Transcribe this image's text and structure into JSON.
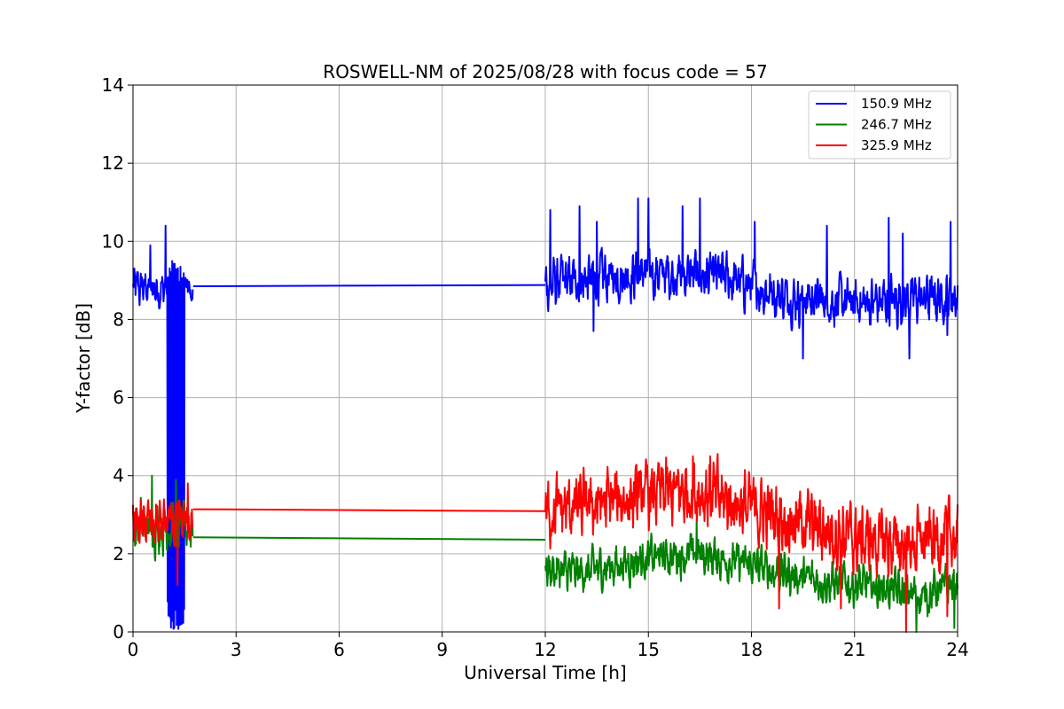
{
  "chart_data": {
    "type": "line",
    "title": "ROSWELL-NM of 2025/08/28 with focus code = 57",
    "xlabel": "Universal Time [h]",
    "ylabel": "Y-factor [dB]",
    "xlim": [
      0,
      24
    ],
    "ylim": [
      0,
      14
    ],
    "xticks": [
      0,
      3,
      6,
      9,
      12,
      15,
      18,
      21,
      24
    ],
    "yticks": [
      0,
      2,
      4,
      6,
      8,
      10,
      12,
      14
    ],
    "grid": true,
    "legend_position": "top-right",
    "series": [
      {
        "name": "150.9 MHz",
        "color": "#0000ff",
        "segments": [
          {
            "x_start": 0.0,
            "x_end": 1.75,
            "baseline": 8.8,
            "amplitude": 0.45,
            "spikes": [
              [
                0.5,
                9.9
              ],
              [
                0.95,
                10.4
              ],
              [
                1.3,
                10.3
              ],
              [
                1.45,
                10.7
              ]
            ],
            "dropouts": [
              [
                1.0,
                1.5,
                0.0,
                9.5
              ]
            ]
          },
          {
            "x_start": 1.75,
            "x_end": 12.0,
            "points": [
              [
                1.75,
                8.85
              ],
              [
                12.0,
                8.88
              ]
            ]
          },
          {
            "x_start": 12.0,
            "x_end": 24.0,
            "baseline_points": [
              [
                12.0,
                8.9
              ],
              [
                15.0,
                9.2
              ],
              [
                17.0,
                9.1
              ],
              [
                19.0,
                8.6
              ],
              [
                21.0,
                8.4
              ],
              [
                24.0,
                8.6
              ]
            ],
            "amplitude": 0.55,
            "spikes": [
              [
                12.15,
                10.8
              ],
              [
                13.0,
                10.9
              ],
              [
                13.5,
                10.5
              ],
              [
                14.7,
                11.1
              ],
              [
                15.0,
                11.1
              ],
              [
                16.0,
                10.9
              ],
              [
                16.5,
                11.1
              ],
              [
                18.1,
                10.5
              ],
              [
                20.2,
                10.4
              ],
              [
                22.0,
                10.6
              ],
              [
                22.4,
                10.2
              ],
              [
                23.8,
                10.5
              ]
            ],
            "dips": [
              [
                13.4,
                7.7
              ],
              [
                19.5,
                7.0
              ],
              [
                22.6,
                7.0
              ],
              [
                23.7,
                7.6
              ]
            ]
          }
        ]
      },
      {
        "name": "246.7 MHz",
        "color": "#008000",
        "segments": [
          {
            "x_start": 0.0,
            "x_end": 1.75,
            "baseline": 2.7,
            "amplitude": 0.55,
            "spikes": [
              [
                0.55,
                4.0
              ],
              [
                1.25,
                3.9
              ]
            ]
          },
          {
            "x_start": 1.75,
            "x_end": 12.0,
            "points": [
              [
                1.75,
                2.42
              ],
              [
                12.0,
                2.36
              ]
            ]
          },
          {
            "x_start": 12.0,
            "x_end": 24.0,
            "baseline_points": [
              [
                12.0,
                1.6
              ],
              [
                13.0,
                1.5
              ],
              [
                15.0,
                1.9
              ],
              [
                16.5,
                2.0
              ],
              [
                18.0,
                1.7
              ],
              [
                20.0,
                1.3
              ],
              [
                22.0,
                1.1
              ],
              [
                23.0,
                0.9
              ],
              [
                24.0,
                1.3
              ]
            ],
            "amplitude": 0.45,
            "spikes": [
              [
                16.4,
                2.9
              ]
            ],
            "dips": [
              [
                22.8,
                0.0
              ],
              [
                23.9,
                0.1
              ]
            ]
          }
        ]
      },
      {
        "name": "325.9 MHz",
        "color": "#ff0000",
        "segments": [
          {
            "x_start": 0.0,
            "x_end": 1.75,
            "baseline": 2.75,
            "amplitude": 0.55,
            "spikes": [
              [
                1.6,
                3.8
              ]
            ],
            "dips": [
              [
                1.3,
                1.2
              ]
            ]
          },
          {
            "x_start": 1.75,
            "x_end": 12.0,
            "points": [
              [
                1.75,
                3.14
              ],
              [
                12.0,
                3.09
              ]
            ]
          },
          {
            "x_start": 12.0,
            "x_end": 24.0,
            "baseline_points": [
              [
                12.0,
                3.1
              ],
              [
                13.0,
                3.2
              ],
              [
                15.0,
                3.5
              ],
              [
                16.5,
                3.6
              ],
              [
                17.5,
                3.3
              ],
              [
                19.0,
                2.9
              ],
              [
                21.0,
                2.4
              ],
              [
                22.5,
                2.2
              ],
              [
                24.0,
                2.5
              ]
            ],
            "amplitude": 0.75,
            "spikes": [
              [
                16.3,
                4.5
              ],
              [
                16.8,
                4.5
              ]
            ],
            "dips": [
              [
                18.8,
                0.6
              ],
              [
                20.6,
                0.6
              ],
              [
                22.5,
                0.0
              ],
              [
                23.7,
                0.4
              ]
            ]
          }
        ]
      }
    ]
  }
}
